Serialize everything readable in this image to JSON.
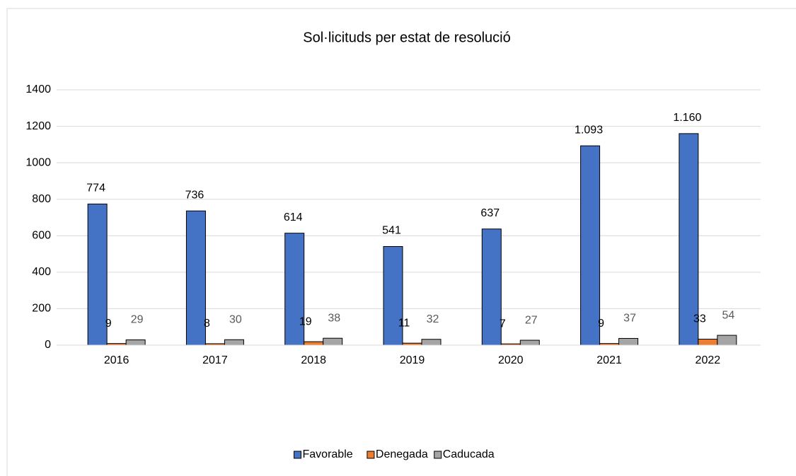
{
  "chart_data": {
    "type": "bar",
    "title": "Sol·licituds per estat de resolució",
    "categories": [
      "2016",
      "2017",
      "2018",
      "2019",
      "2020",
      "2021",
      "2022"
    ],
    "series": [
      {
        "name": "Favorable",
        "color": "#4472c4",
        "values": [
          774,
          736,
          614,
          541,
          637,
          1093,
          1160
        ],
        "value_labels": [
          "774",
          "736",
          "614",
          "541",
          "637",
          "1.093",
          "1.160"
        ]
      },
      {
        "name": "Denegada",
        "color": "#ed7d31",
        "values": [
          9,
          8,
          19,
          11,
          7,
          9,
          33
        ]
      },
      {
        "name": "Caducada",
        "color": "#a5a5a5",
        "values": [
          29,
          30,
          38,
          32,
          27,
          37,
          54
        ]
      }
    ],
    "ylim": [
      0,
      1400
    ],
    "yticks": [
      0,
      200,
      400,
      600,
      800,
      1000,
      1200,
      1400
    ],
    "grid": true,
    "legend": "bottom"
  }
}
